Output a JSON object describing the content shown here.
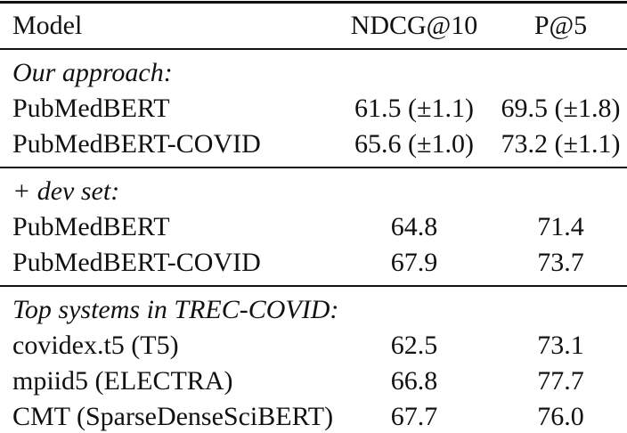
{
  "colors": {
    "background": "#ffffff",
    "text": "#111111",
    "rule": "#111111"
  },
  "table": {
    "columns": [
      "Model",
      "NDCG@10",
      "P@5"
    ],
    "sections": [
      {
        "label": "Our approach:",
        "rows": [
          {
            "model": "PubMedBERT",
            "ndcg10": "61.5 (±1.1)",
            "p5": "69.5 (±1.8)"
          },
          {
            "model": "PubMedBERT-COVID",
            "ndcg10": "65.6 (±1.0)",
            "p5": "73.2 (±1.1)"
          }
        ]
      },
      {
        "label": "+ dev set:",
        "rows": [
          {
            "model": "PubMedBERT",
            "ndcg10": "64.8",
            "p5": "71.4"
          },
          {
            "model": "PubMedBERT-COVID",
            "ndcg10": "67.9",
            "p5": "73.7"
          }
        ]
      },
      {
        "label": "Top systems in TREC-COVID:",
        "rows": [
          {
            "model": "covidex.t5 (T5)",
            "ndcg10": "62.5",
            "p5": "73.1"
          },
          {
            "model": "mpiid5 (ELECTRA)",
            "ndcg10": "66.8",
            "p5": "77.7"
          },
          {
            "model": "CMT (SparseDenseSciBERT)",
            "ndcg10": "67.7",
            "p5": "76.0"
          }
        ]
      }
    ]
  }
}
